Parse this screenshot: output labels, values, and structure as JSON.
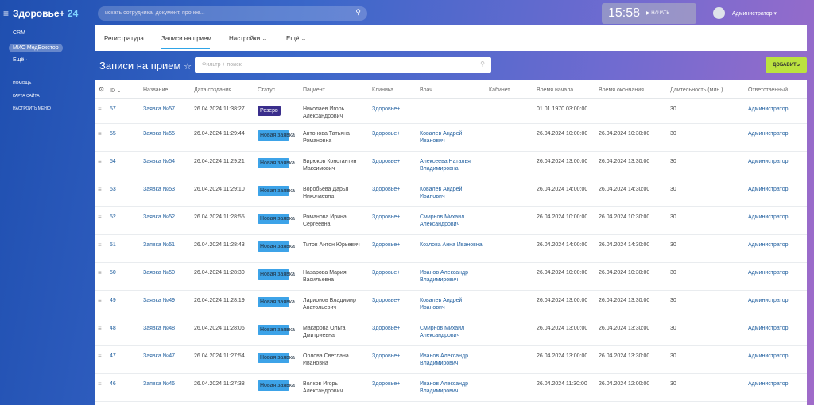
{
  "header": {
    "logo": "Здоровье+",
    "logo_suffix": "24",
    "search_placeholder": "искать сотрудника, документ, прочее...",
    "clock": "15:58",
    "start_button": "НАЧАТЬ",
    "user": "Администратор"
  },
  "sidebar": {
    "items": [
      "CRM",
      "МИС МедБокстор",
      "Ещё ·"
    ],
    "links": [
      "ПОМОЩЬ",
      "КАРТА САЙТА",
      "НАСТРОИТЬ МЕНЮ"
    ]
  },
  "tabs": [
    "Регистратура",
    "Записи на прием",
    "Настройки",
    "Ещё"
  ],
  "page": {
    "title": "Записи на прием",
    "filter_placeholder": "Фильтр + поиск",
    "add_button": "ДОБАВИТЬ"
  },
  "table": {
    "columns": [
      "ID",
      "Название",
      "Дата создания",
      "Статус",
      "Пациент",
      "Клиника",
      "Врач",
      "Кабинет",
      "Время начала",
      "Время окончания",
      "Длительность (мин.)",
      "Ответственный"
    ],
    "rows": [
      {
        "id": "57",
        "name": "Заявка №57",
        "created": "26.04.2024 11:38:27",
        "status": "Резерв",
        "patient": "Николаев Игорь Александрович",
        "clinic": "Здоровье+",
        "start": "01.01.1970 03:00:00",
        "duration": "30",
        "responsible": "Администратор"
      },
      {
        "id": "55",
        "name": "Заявка №55",
        "created": "26.04.2024 11:29:44",
        "status": "Новая заявка",
        "patient": "Антонова Татьяна Романовна",
        "clinic": "Здоровье+",
        "doctor": "Ковалев Андрей Иванович",
        "start": "26.04.2024 10:00:00",
        "end": "26.04.2024 10:30:00",
        "duration": "30",
        "responsible": "Администратор"
      },
      {
        "id": "54",
        "name": "Заявка №54",
        "created": "26.04.2024 11:29:21",
        "status": "Новая заявка",
        "patient": "Бирюков Константин Максимович",
        "clinic": "Здоровье+",
        "doctor": "Алексеева Наталья Владимировна",
        "start": "26.04.2024 13:00:00",
        "end": "26.04.2024 13:30:00",
        "duration": "30",
        "responsible": "Администратор"
      },
      {
        "id": "53",
        "name": "Заявка №53",
        "created": "26.04.2024 11:29:10",
        "status": "Новая заявка",
        "patient": "Воробьева Дарья Николаевна",
        "clinic": "Здоровье+",
        "doctor": "Ковалев Андрей Иванович",
        "start": "26.04.2024 14:00:00",
        "end": "26.04.2024 14:30:00",
        "duration": "30",
        "responsible": "Администратор"
      },
      {
        "id": "52",
        "name": "Заявка №52",
        "created": "26.04.2024 11:28:55",
        "status": "Новая заявка",
        "patient": "Романова Ирина Сергеевна",
        "clinic": "Здоровье+",
        "doctor": "Смирнов Михаил Александрович",
        "start": "26.04.2024 10:00:00",
        "end": "26.04.2024 10:30:00",
        "duration": "30",
        "responsible": "Администратор"
      },
      {
        "id": "51",
        "name": "Заявка №51",
        "created": "26.04.2024 11:28:43",
        "status": "Новая заявка",
        "patient": "Титов Антон Юрьевич",
        "clinic": "Здоровье+",
        "doctor": "Козлова Анна Ивановна",
        "start": "26.04.2024 14:00:00",
        "end": "26.04.2024 14:30:00",
        "duration": "30",
        "responsible": "Администратор"
      },
      {
        "id": "50",
        "name": "Заявка №50",
        "created": "26.04.2024 11:28:30",
        "status": "Новая заявка",
        "patient": "Назарова Мария Васильевна",
        "clinic": "Здоровье+",
        "doctor": "Иванов Александр Владимирович",
        "start": "26.04.2024 10:00:00",
        "end": "26.04.2024 10:30:00",
        "duration": "30",
        "responsible": "Администратор"
      },
      {
        "id": "49",
        "name": "Заявка №49",
        "created": "26.04.2024 11:28:19",
        "status": "Новая заявка",
        "patient": "Ларионов Владимир Анатольевич",
        "clinic": "Здоровье+",
        "doctor": "Ковалев Андрей Иванович",
        "start": "26.04.2024 13:00:00",
        "end": "26.04.2024 13:30:00",
        "duration": "30",
        "responsible": "Администратор"
      },
      {
        "id": "48",
        "name": "Заявка №48",
        "created": "26.04.2024 11:28:06",
        "status": "Новая заявка",
        "patient": "Макарова Ольга Дмитриевна",
        "clinic": "Здоровье+",
        "doctor": "Смирнов Михаил Александрович",
        "start": "26.04.2024 13:00:00",
        "end": "26.04.2024 13:30:00",
        "duration": "30",
        "responsible": "Администратор"
      },
      {
        "id": "47",
        "name": "Заявка №47",
        "created": "26.04.2024 11:27:54",
        "status": "Новая заявка",
        "patient": "Орлова Светлана Ивановна",
        "clinic": "Здоровье+",
        "doctor": "Иванов Александр Владимирович",
        "start": "26.04.2024 13:00:00",
        "end": "26.04.2024 13:30:00",
        "duration": "30",
        "responsible": "Администратор"
      },
      {
        "id": "46",
        "name": "Заявка №46",
        "created": "26.04.2024 11:27:38",
        "status": "Новая заявка",
        "patient": "Волков Игорь Александрович",
        "clinic": "Здоровье+",
        "doctor": "Иванов Александр Владимирович",
        "start": "26.04.2024 11:30:00",
        "end": "26.04.2024 12:00:00",
        "duration": "30",
        "responsible": "Администратор"
      }
    ]
  }
}
